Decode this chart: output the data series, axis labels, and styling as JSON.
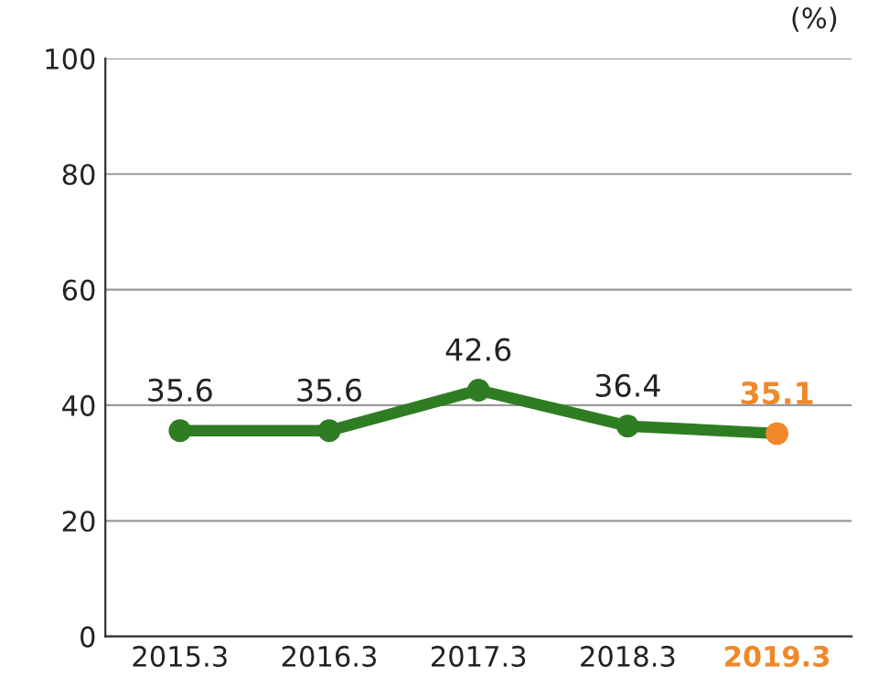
{
  "chart_data": {
    "type": "line",
    "ylabel": "(%)",
    "categories": [
      "2015.3",
      "2016.3",
      "2017.3",
      "2018.3",
      "2019.3"
    ],
    "series": [
      {
        "color": "#2f7d22",
        "colors": [
          "#2f7d22",
          "#2f7d22",
          "#2f7d22",
          "#2f7d22",
          "#f0882a"
        ],
        "values": [
          35.6,
          35.6,
          42.6,
          36.4,
          35.1
        ]
      }
    ],
    "ylim": [
      0,
      100
    ],
    "yticks": [
      0,
      20,
      40,
      60,
      80,
      100
    ],
    "grid": "y",
    "data_labels": true,
    "marker": "circle",
    "line_style": "solid"
  }
}
